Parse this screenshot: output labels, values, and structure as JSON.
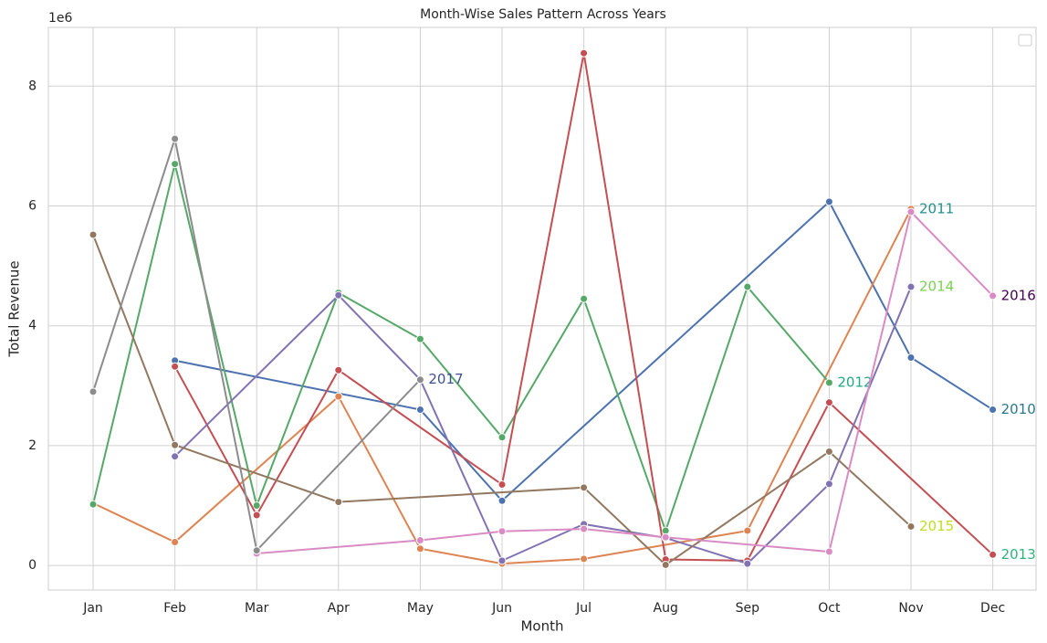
{
  "chart_data": {
    "type": "line",
    "title": "Month-Wise Sales Pattern Across Years",
    "xlabel": "Month",
    "ylabel": "Total Revenue",
    "y_offset_label": "1e6",
    "categories": [
      "Jan",
      "Feb",
      "Mar",
      "Apr",
      "May",
      "Jun",
      "Jul",
      "Aug",
      "Sep",
      "Oct",
      "Nov",
      "Dec"
    ],
    "ylim": [
      -0.41,
      8.98
    ],
    "yticks": [
      0,
      2,
      4,
      6,
      8
    ],
    "grid": true,
    "legend": "upper right",
    "series": [
      {
        "name": "2010",
        "color": "#4c72b0",
        "label_color": "#2a788e",
        "x": [
          "Feb",
          "May",
          "Jun",
          "Oct",
          "Nov",
          "Dec"
        ],
        "values": [
          3.42,
          2.6,
          1.08,
          6.07,
          3.47,
          2.6
        ]
      },
      {
        "name": "2011",
        "color": "#dd8452",
        "label_color": "#21918c",
        "x": [
          "Jan",
          "Feb",
          "Apr",
          "May",
          "Jun",
          "Jul",
          "Sep",
          "Nov"
        ],
        "values": [
          1.04,
          0.39,
          2.82,
          0.28,
          0.03,
          0.11,
          0.58,
          5.95
        ]
      },
      {
        "name": "2012",
        "color": "#55a868",
        "label_color": "#22a884",
        "x": [
          "Jan",
          "Feb",
          "Mar",
          "Apr",
          "May",
          "Jun",
          "Jul",
          "Aug",
          "Sep",
          "Oct"
        ],
        "values": [
          1.02,
          6.7,
          1.0,
          4.55,
          3.78,
          2.14,
          4.45,
          0.58,
          4.65,
          3.05
        ]
      },
      {
        "name": "2013",
        "color": "#c44e52",
        "label_color": "#2fb47c",
        "x": [
          "Feb",
          "Mar",
          "Apr",
          "Jun",
          "Jul",
          "Aug",
          "Sep",
          "Oct",
          "Dec"
        ],
        "values": [
          3.32,
          0.84,
          3.26,
          1.35,
          8.55,
          0.1,
          0.08,
          2.72,
          0.18
        ]
      },
      {
        "name": "2014",
        "color": "#8172b3",
        "label_color": "#7ad151",
        "x": [
          "Feb",
          "Apr",
          "May",
          "Jun",
          "Jul",
          "Aug",
          "Sep",
          "Oct",
          "Nov"
        ],
        "values": [
          1.82,
          4.51,
          3.1,
          0.08,
          0.69,
          0.46,
          0.03,
          1.36,
          4.65
        ]
      },
      {
        "name": "2015",
        "color": "#937860",
        "label_color": "#bddf26",
        "x": [
          "Jan",
          "Feb",
          "Apr",
          "Jul",
          "Aug",
          "Oct",
          "Nov"
        ],
        "values": [
          5.52,
          2.01,
          1.06,
          1.3,
          0.01,
          1.9,
          0.65
        ]
      },
      {
        "name": "2016",
        "color": "#da8bc3",
        "label_color": "#440154",
        "x": [
          "Mar",
          "May",
          "Jun",
          "Jul",
          "Aug",
          "Oct",
          "Nov",
          "Dec"
        ],
        "values": [
          0.2,
          0.42,
          0.57,
          0.61,
          0.47,
          0.23,
          5.9,
          4.5
        ]
      },
      {
        "name": "2017",
        "color": "#8c8c8c",
        "label_color": "#3b528b",
        "x": [
          "Jan",
          "Feb",
          "Mar",
          "May"
        ],
        "values": [
          2.9,
          7.12,
          0.25,
          3.1
        ]
      }
    ]
  }
}
